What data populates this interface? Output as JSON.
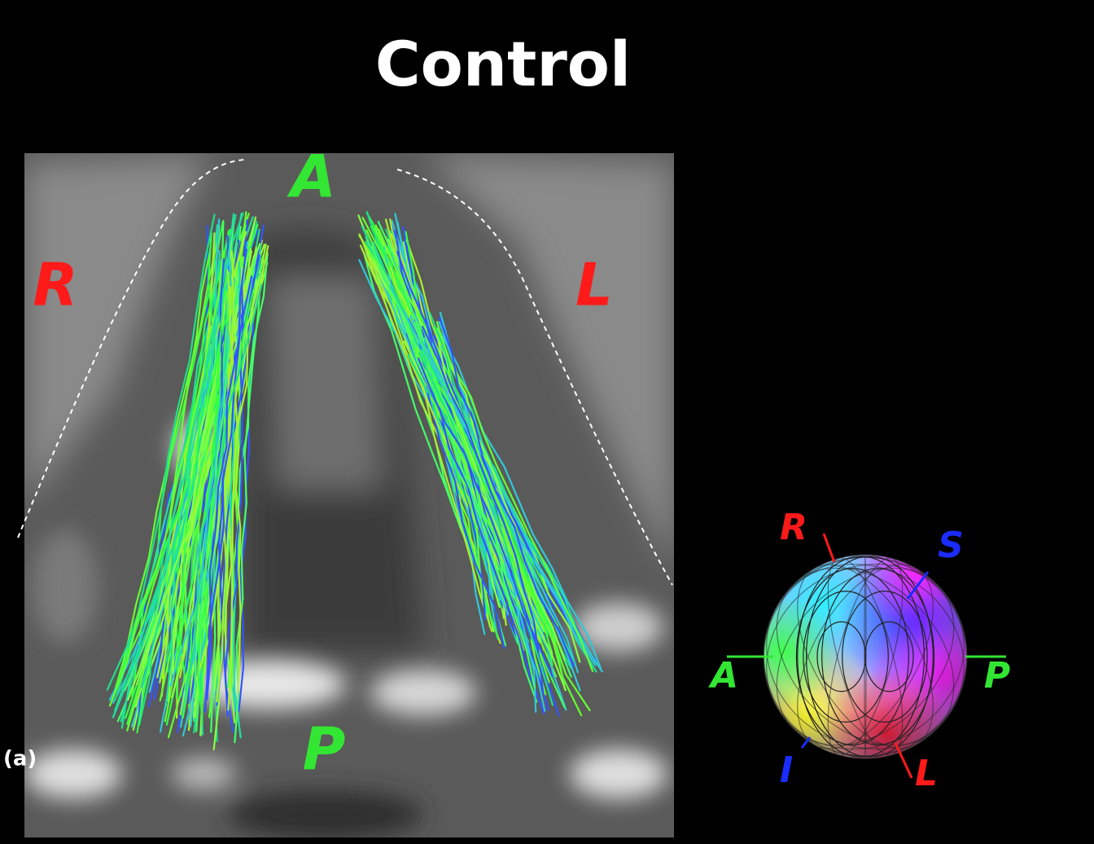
{
  "title": "Control",
  "panel_label": "(a)",
  "image_labels": {
    "anterior": "A",
    "right": "R",
    "left": "L",
    "posterior": "P"
  },
  "sphere_labels": {
    "right": "R",
    "superior": "S",
    "anterior": "A",
    "posterior": "P",
    "inferior": "I",
    "left": "L"
  }
}
